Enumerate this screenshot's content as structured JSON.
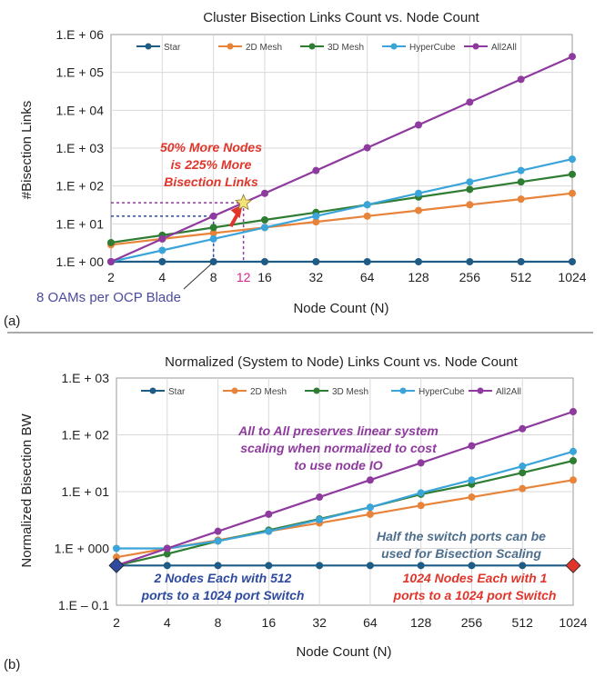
{
  "colors": {
    "Star": "#1F5C85",
    "2D Mesh": "#E8833A",
    "3D Mesh": "#2E7D32",
    "HyperCube": "#3BA4D8",
    "All2All": "#8E3A9E",
    "grid": "#d9d9d9",
    "annotation_red": "#E0352B",
    "annotation_purple": "#8E3A9E",
    "annotation_blue": "#2E4A9E",
    "annotation_steel": "#4D6E8C",
    "label_12": "#E0208A",
    "oam_label": "#4B4B9E"
  },
  "chart_data": [
    {
      "type": "line",
      "title": "Cluster Bisection Links Count vs. Node Count",
      "xlabel": "Node Count (N)",
      "ylabel": "#Bisection Links",
      "xscale": "log2",
      "yscale": "log10",
      "ylim": [
        1,
        1000000
      ],
      "legend_position": "top",
      "grid": true,
      "x": [
        2,
        4,
        8,
        16,
        32,
        64,
        128,
        256,
        512,
        1024
      ],
      "x_tick_labels": [
        "2",
        "4",
        "8",
        "16",
        "32",
        "64",
        "128",
        "256",
        "512",
        "1024"
      ],
      "y_tick_labels": [
        "1.E + 00",
        "1.E + 01",
        "1.E + 02",
        "1.E + 03",
        "1.E + 04",
        "1.E + 05",
        "1.E + 06"
      ],
      "series": [
        {
          "name": "Star",
          "values": [
            1,
            1,
            1,
            1,
            1,
            1,
            1,
            1,
            1,
            1
          ]
        },
        {
          "name": "2D Mesh",
          "values": [
            2.8,
            4,
            5.7,
            8,
            11.3,
            16,
            22.6,
            32,
            45,
            64
          ]
        },
        {
          "name": "3D Mesh",
          "values": [
            3.2,
            5,
            8,
            12.7,
            20,
            32,
            51,
            81,
            128,
            203
          ]
        },
        {
          "name": "HyperCube",
          "values": [
            1,
            2,
            4,
            8,
            16,
            32,
            64,
            128,
            256,
            512
          ]
        },
        {
          "name": "All2All",
          "values": [
            1,
            4,
            16,
            64,
            256,
            1024,
            4096,
            16384,
            65536,
            262144
          ]
        }
      ],
      "annotations": {
        "highlight_x": 12,
        "highlight_x_label": "12",
        "highlight_y": 36,
        "ref_x": 8,
        "ref_y": 16,
        "text_red": [
          "50% More Nodes",
          "is 225% More",
          "Bisection Links"
        ],
        "text_oam": "8 OAMs per OCP Blade"
      },
      "panel_label": "(a)"
    },
    {
      "type": "line",
      "title": "Normalized (System to Node) Links Count vs. Node Count",
      "xlabel": "Node Count (N)",
      "ylabel": "Normalized Bisection BW",
      "xscale": "log2",
      "yscale": "log10",
      "ylim": [
        0.1,
        1000
      ],
      "legend_position": "top",
      "grid": true,
      "x": [
        2,
        4,
        8,
        16,
        32,
        64,
        128,
        256,
        512,
        1024
      ],
      "x_tick_labels": [
        "2",
        "4",
        "8",
        "16",
        "32",
        "64",
        "128",
        "256",
        "512",
        "1024"
      ],
      "y_tick_labels": [
        "1.E – 0.1",
        "1.E + 000",
        "1.E + 01",
        "1.E + 02",
        "1.E + 03"
      ],
      "series": [
        {
          "name": "Star",
          "values": [
            0.5,
            0.5,
            0.5,
            0.5,
            0.5,
            0.5,
            0.5,
            0.5,
            0.5,
            0.5
          ]
        },
        {
          "name": "2D Mesh",
          "values": [
            0.7,
            1,
            1.4,
            2,
            2.8,
            4,
            5.7,
            8,
            11.3,
            16
          ]
        },
        {
          "name": "3D Mesh",
          "values": [
            0.5,
            0.8,
            1.35,
            2.1,
            3.3,
            5.3,
            9,
            13.5,
            21.5,
            35
          ]
        },
        {
          "name": "HyperCube",
          "values": [
            1,
            1,
            1.35,
            2,
            3.2,
            5.3,
            9.5,
            16,
            28,
            51
          ]
        },
        {
          "name": "All2All",
          "values": [
            0.5,
            1,
            2,
            4,
            8,
            16,
            32,
            64,
            128,
            256
          ]
        }
      ],
      "annotations": {
        "text_purple": [
          "All to All preserves linear system",
          "scaling when normalized to cost",
          "to use node IO"
        ],
        "text_steel": [
          "Half the switch ports can be",
          "used for Bisection Scaling"
        ],
        "text_blue": [
          "2 Nodes Each with 512",
          "ports to a 1024 port Switch"
        ],
        "text_red": [
          "1024 Nodes Each with 1",
          "ports to a 1024 port Switch"
        ]
      },
      "panel_label": "(b)"
    }
  ]
}
